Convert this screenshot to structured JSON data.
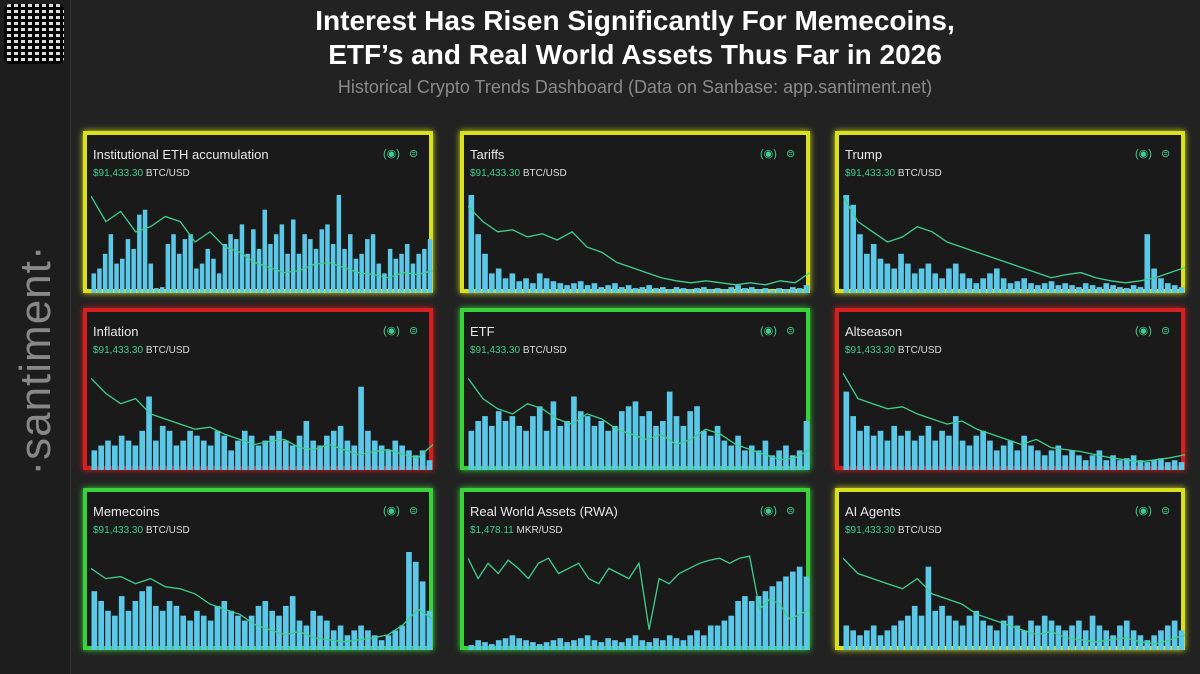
{
  "header": {
    "title_line1": "Interest Has Risen Significantly For Memecoins,",
    "title_line2": "ETF’s and Real World Assets Thus Far in 2026",
    "subtitle": "Historical Crypto Trends Dashboard (Data on Sanbase: app.santiment.net)"
  },
  "sidebar": {
    "logo": "·santiment·"
  },
  "colors": {
    "yellow": "#d8e020",
    "green": "#3ad13a",
    "red": "#d42020",
    "bar": "#5bc8e8",
    "line": "#3ecf8e"
  },
  "panels": [
    {
      "title": "Institutional ETH accumulation",
      "price": "$91,433.30",
      "pair": "BTC/USD",
      "border": "yellow",
      "bars": [
        20,
        25,
        40,
        60,
        30,
        35,
        55,
        45,
        80,
        85,
        30,
        5,
        6,
        50,
        60,
        40,
        55,
        60,
        25,
        30,
        45,
        35,
        20,
        50,
        60,
        55,
        70,
        40,
        65,
        45,
        85,
        50,
        60,
        70,
        40,
        75,
        40,
        60,
        55,
        45,
        65,
        70,
        50,
        100,
        45,
        60,
        35,
        40,
        55,
        60,
        30,
        20,
        45,
        35,
        40,
        50,
        30,
        40,
        45,
        55
      ],
      "line": [
        95,
        70,
        80,
        60,
        65,
        75,
        70,
        50,
        60,
        45,
        40,
        30,
        25,
        20,
        22,
        28,
        30,
        25,
        20,
        18,
        15,
        20,
        18,
        22
      ]
    },
    {
      "title": "Tariffs",
      "price": "$91,433.30",
      "pair": "BTC/USD",
      "border": "yellow",
      "bars": [
        100,
        60,
        40,
        20,
        25,
        15,
        20,
        12,
        15,
        10,
        20,
        15,
        12,
        10,
        8,
        10,
        12,
        8,
        10,
        6,
        8,
        10,
        6,
        8,
        5,
        6,
        8,
        5,
        6,
        4,
        6,
        5,
        4,
        5,
        6,
        4,
        5,
        4,
        6,
        8,
        5,
        6,
        4,
        5,
        3,
        5,
        4,
        6,
        5,
        8
      ],
      "line": [
        85,
        70,
        60,
        62,
        55,
        58,
        52,
        60,
        45,
        40,
        30,
        25,
        20,
        15,
        12,
        10,
        12,
        10,
        8,
        10,
        8,
        12,
        10,
        20
      ]
    },
    {
      "title": "Trump",
      "price": "$91,433.30",
      "pair": "BTC/USD",
      "border": "yellow",
      "bars": [
        100,
        90,
        60,
        40,
        50,
        35,
        30,
        25,
        40,
        30,
        20,
        25,
        30,
        20,
        15,
        25,
        30,
        20,
        15,
        10,
        15,
        20,
        25,
        15,
        10,
        12,
        15,
        10,
        8,
        10,
        12,
        8,
        10,
        8,
        6,
        10,
        8,
        6,
        10,
        8,
        6,
        5,
        8,
        6,
        60,
        25,
        15,
        10,
        8,
        6
      ],
      "line": [
        95,
        70,
        60,
        50,
        55,
        65,
        60,
        50,
        45,
        40,
        35,
        30,
        25,
        20,
        15,
        18,
        20,
        15,
        12,
        10,
        12,
        15,
        20,
        25
      ]
    },
    {
      "title": "Inflation",
      "price": "$91,433.30",
      "pair": "BTC/USD",
      "border": "red",
      "bars": [
        20,
        25,
        30,
        25,
        35,
        30,
        25,
        40,
        75,
        30,
        45,
        40,
        25,
        30,
        40,
        35,
        30,
        25,
        40,
        35,
        20,
        30,
        40,
        35,
        25,
        30,
        35,
        40,
        30,
        25,
        35,
        50,
        30,
        25,
        35,
        40,
        45,
        30,
        25,
        85,
        40,
        30,
        25,
        20,
        30,
        25,
        20,
        15,
        20,
        10
      ],
      "line": [
        90,
        75,
        65,
        70,
        55,
        50,
        45,
        40,
        42,
        35,
        30,
        25,
        28,
        30,
        22,
        20,
        25,
        20,
        15,
        18,
        20,
        15,
        12,
        25
      ]
    },
    {
      "title": "ETF",
      "price": "$91,433.30",
      "pair": "BTC/USD",
      "border": "green",
      "bars": [
        40,
        50,
        55,
        45,
        60,
        50,
        55,
        45,
        40,
        55,
        65,
        40,
        70,
        45,
        50,
        75,
        60,
        55,
        45,
        50,
        40,
        45,
        60,
        65,
        70,
        55,
        60,
        45,
        50,
        80,
        55,
        45,
        60,
        65,
        40,
        35,
        45,
        30,
        25,
        35,
        20,
        25,
        20,
        30,
        15,
        20,
        25,
        15,
        20,
        50
      ],
      "line": [
        90,
        70,
        60,
        55,
        65,
        60,
        50,
        45,
        55,
        50,
        40,
        35,
        30,
        35,
        25,
        30,
        40,
        35,
        25,
        20,
        15,
        10,
        12,
        20
      ]
    },
    {
      "title": "Altseason",
      "price": "$91,433.30",
      "pair": "BTC/USD",
      "border": "red",
      "bars": [
        80,
        55,
        40,
        45,
        35,
        40,
        30,
        45,
        35,
        40,
        30,
        35,
        45,
        30,
        40,
        35,
        55,
        30,
        25,
        35,
        40,
        30,
        20,
        25,
        30,
        20,
        35,
        25,
        20,
        15,
        20,
        25,
        15,
        20,
        15,
        10,
        15,
        20,
        10,
        15,
        10,
        12,
        15,
        10,
        8,
        10,
        12,
        8,
        10,
        8
      ],
      "line": [
        95,
        70,
        65,
        60,
        62,
        55,
        50,
        45,
        48,
        40,
        35,
        30,
        25,
        30,
        22,
        20,
        18,
        15,
        12,
        10,
        8,
        10,
        12,
        15
      ]
    },
    {
      "title": "Memecoins",
      "price": "$91,433.30",
      "pair": "BTC/USD",
      "border": "green",
      "bars": [
        60,
        50,
        40,
        35,
        55,
        40,
        50,
        60,
        65,
        45,
        40,
        50,
        45,
        35,
        30,
        40,
        35,
        30,
        45,
        50,
        40,
        35,
        30,
        35,
        45,
        50,
        40,
        35,
        45,
        55,
        30,
        25,
        40,
        35,
        30,
        20,
        25,
        15,
        20,
        25,
        20,
        15,
        10,
        15,
        20,
        25,
        100,
        90,
        70,
        40
      ],
      "line": [
        80,
        70,
        72,
        65,
        70,
        62,
        60,
        55,
        45,
        40,
        35,
        25,
        20,
        15,
        18,
        12,
        10,
        8,
        10,
        12,
        15,
        25,
        40,
        30
      ]
    },
    {
      "title": "Real World Assets (RWA)",
      "price": "$1,478.11",
      "pair": "MKR/USD",
      "border": "green",
      "bars": [
        5,
        10,
        8,
        6,
        10,
        12,
        15,
        12,
        10,
        8,
        6,
        8,
        10,
        12,
        8,
        10,
        12,
        15,
        10,
        8,
        12,
        10,
        8,
        12,
        15,
        10,
        8,
        12,
        10,
        15,
        12,
        10,
        15,
        20,
        15,
        25,
        25,
        30,
        35,
        50,
        55,
        50,
        55,
        60,
        65,
        70,
        75,
        80,
        85,
        75
      ],
      "line": [
        90,
        70,
        85,
        75,
        88,
        80,
        70,
        85,
        90,
        75,
        80,
        85,
        70,
        65,
        80,
        75,
        70,
        85,
        20,
        70,
        65,
        75,
        80,
        85,
        88,
        90,
        85,
        90,
        92,
        40,
        50,
        45,
        30,
        35,
        40
      ]
    },
    {
      "title": "AI Agents",
      "price": "$91,433.30",
      "pair": "BTC/USD",
      "border": "yellow",
      "bars": [
        25,
        20,
        15,
        20,
        25,
        15,
        20,
        25,
        30,
        35,
        45,
        35,
        85,
        40,
        45,
        35,
        30,
        25,
        35,
        40,
        30,
        25,
        20,
        30,
        35,
        25,
        20,
        30,
        25,
        35,
        30,
        25,
        20,
        25,
        30,
        20,
        35,
        25,
        20,
        15,
        25,
        30,
        20,
        15,
        10,
        15,
        20,
        25,
        30,
        20
      ],
      "line": [
        90,
        75,
        70,
        65,
        60,
        70,
        55,
        50,
        45,
        35,
        30,
        25,
        20,
        15,
        18,
        12,
        10,
        8,
        10,
        12,
        8,
        6,
        10,
        15
      ]
    }
  ]
}
